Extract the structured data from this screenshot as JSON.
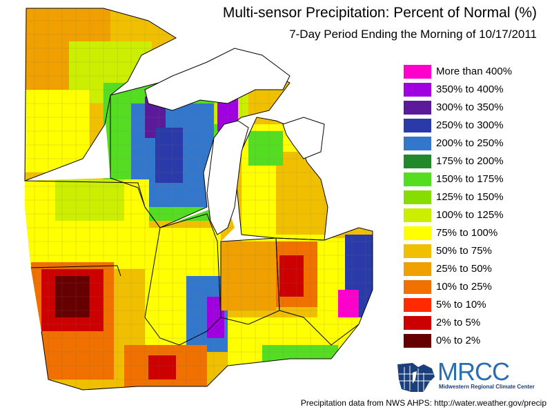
{
  "title": "Multi-sensor Precipitation: Percent of Normal (%)",
  "subtitle": "7-Day Period Ending the Morning of 10/17/2011",
  "legend": [
    {
      "label": "More than 400%",
      "color": "#ff00cc"
    },
    {
      "label": "350% to 400%",
      "color": "#a000e0"
    },
    {
      "label": "300% to 350%",
      "color": "#5a1a9a"
    },
    {
      "label": "250% to 300%",
      "color": "#2a3aa8"
    },
    {
      "label": "200% to 250%",
      "color": "#3377cc"
    },
    {
      "label": "175% to 200%",
      "color": "#22882a"
    },
    {
      "label": "150% to 175%",
      "color": "#55dd22"
    },
    {
      "label": "125% to 150%",
      "color": "#88dd00"
    },
    {
      "label": "100% to 125%",
      "color": "#ccee00"
    },
    {
      "label": "75% to 100%",
      "color": "#ffff00"
    },
    {
      "label": "50% to 75%",
      "color": "#f0c000"
    },
    {
      "label": "25% to 50%",
      "color": "#f0a000"
    },
    {
      "label": "10% to 25%",
      "color": "#f07000"
    },
    {
      "label": "5% to 10%",
      "color": "#ff2a00"
    },
    {
      "label": "2% to 5%",
      "color": "#cc0000"
    },
    {
      "label": "0% to 2%",
      "color": "#660000"
    }
  ],
  "logo": {
    "name": "MRCC",
    "subtitle": "Midwestern Regional Climate Center"
  },
  "footer": "Precipitation data from NWS AHPS:  http://water.weather.gov/precip"
}
